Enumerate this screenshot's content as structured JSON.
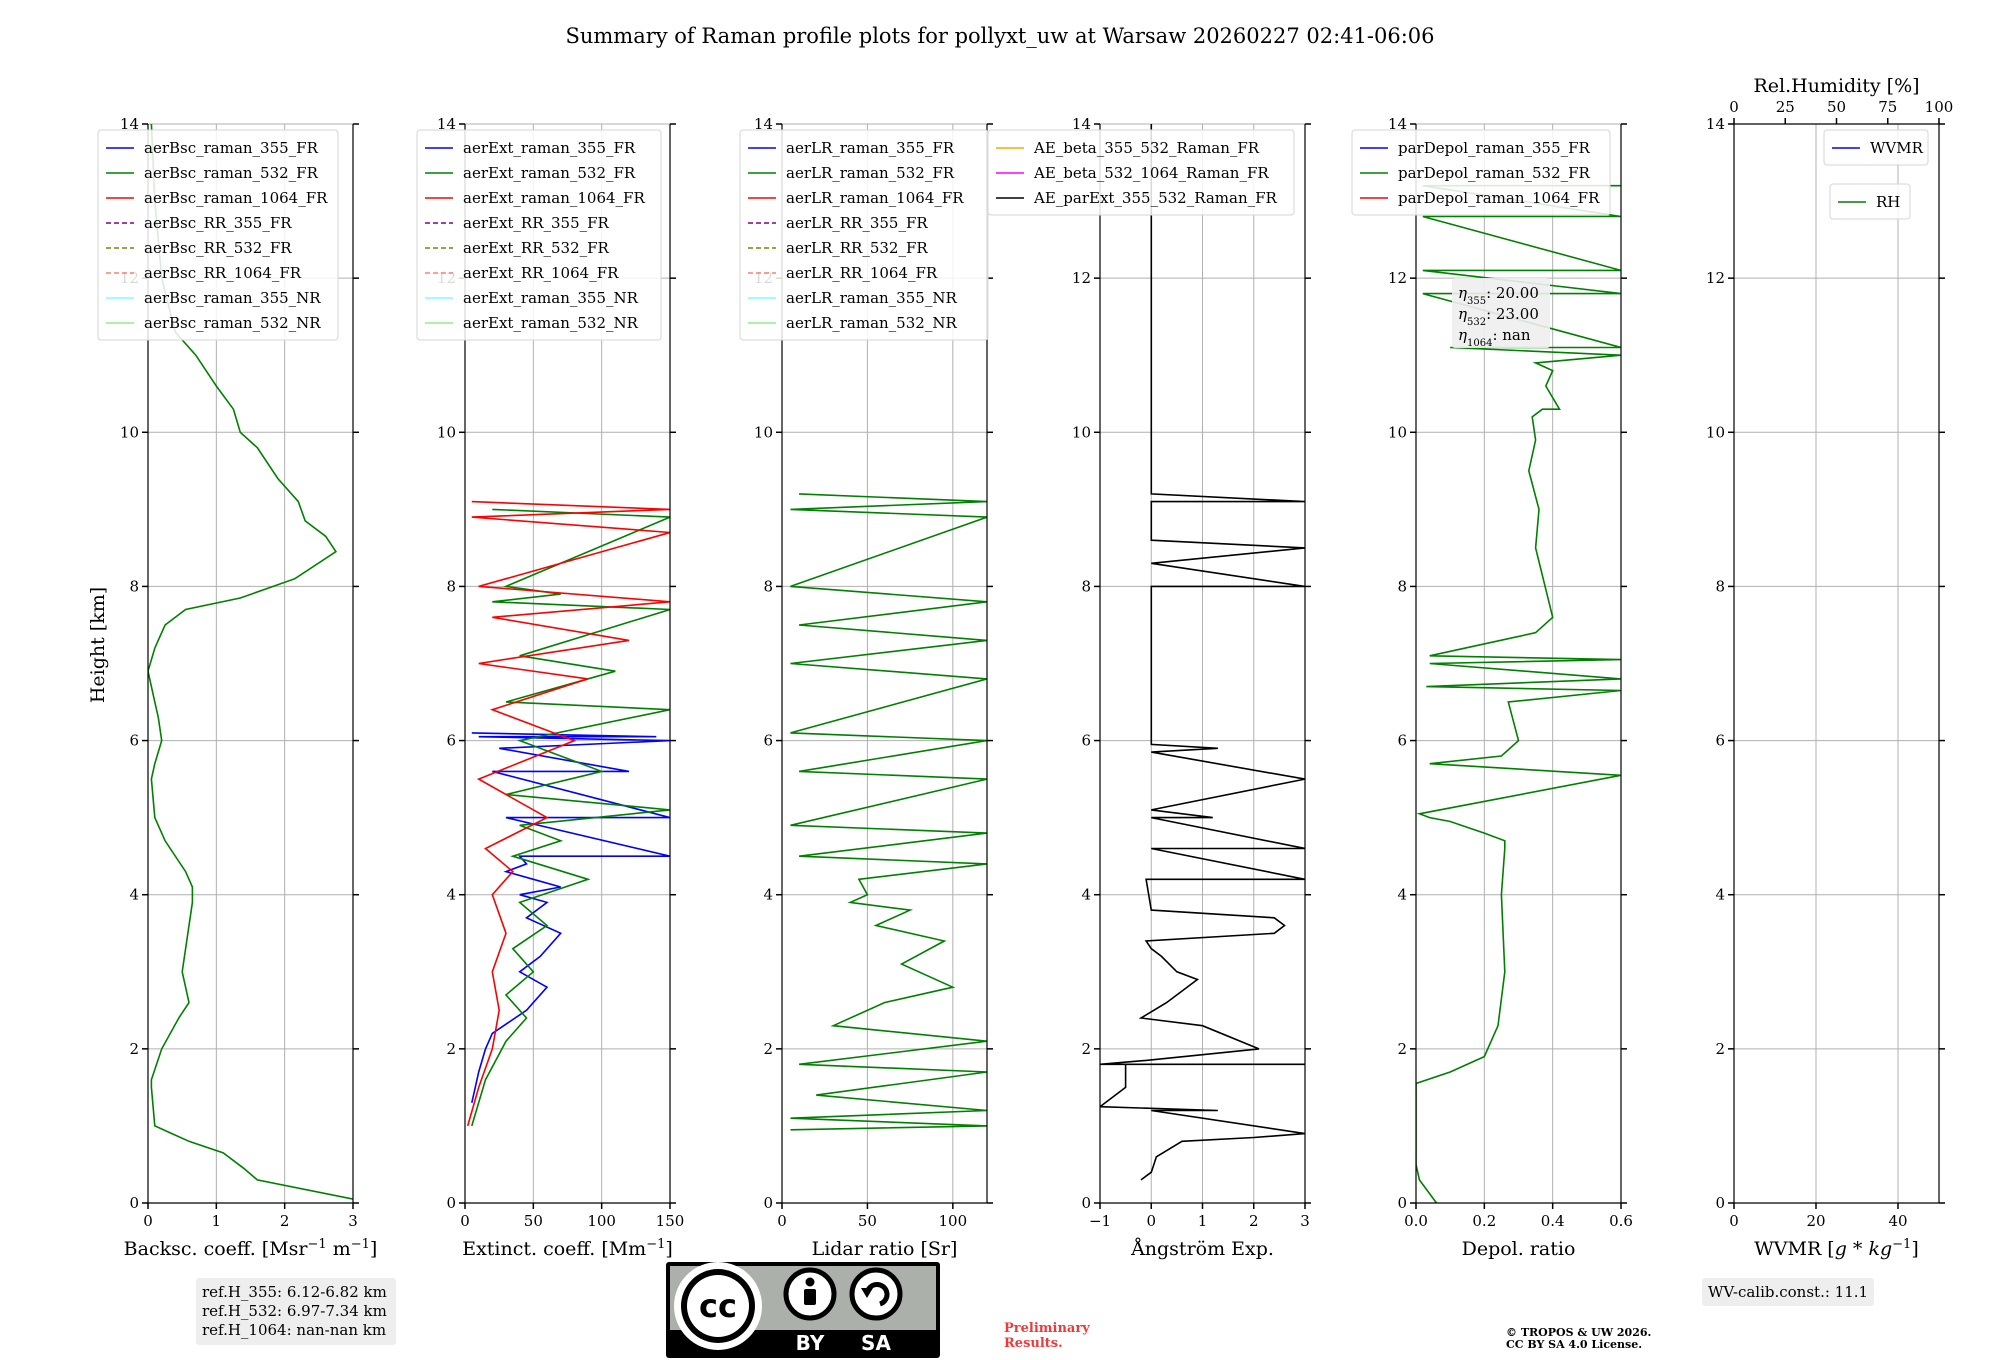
{
  "title": "Summary of Raman profile plots for pollyxt_uw at Warsaw 20260227 02:41-06:06",
  "ylabel": "Height [km]",
  "colors": {
    "blue": "#0000ff",
    "green": "#008000",
    "red": "#ff0000",
    "purple": "#800080",
    "olive": "#808000",
    "salmon": "#fa8072",
    "cyan": "#7fffff",
    "lightgreen": "#90ee90",
    "orange": "#ffa500",
    "magenta": "#ff00ff",
    "black": "#000000"
  },
  "chart_data": [
    {
      "type": "line",
      "id": "bsc",
      "xlabel_pre": "Backsc. coeff. [Msr",
      "xlabel_sup1": "−1",
      "xlabel_mid": " m",
      "xlabel_sup2": "−1",
      "xlabel_post": "]",
      "xlim": [
        0,
        3
      ],
      "xticks": [
        0,
        1,
        2,
        3
      ],
      "ylim": [
        0,
        14
      ],
      "yticks": [
        0,
        2,
        4,
        6,
        8,
        10,
        12,
        14
      ],
      "legend": [
        {
          "label": "aerBsc_raman_355_FR",
          "color": "blue",
          "dash": false
        },
        {
          "label": "aerBsc_raman_532_FR",
          "color": "green",
          "dash": false
        },
        {
          "label": "aerBsc_raman_1064_FR",
          "color": "red",
          "dash": false
        },
        {
          "label": "aerBsc_RR_355_FR",
          "color": "purple",
          "dash": true
        },
        {
          "label": "aerBsc_RR_532_FR",
          "color": "olive",
          "dash": true
        },
        {
          "label": "aerBsc_RR_1064_FR",
          "color": "salmon",
          "dash": true
        },
        {
          "label": "aerBsc_raman_355_NR",
          "color": "cyan",
          "dash": false
        },
        {
          "label": "aerBsc_raman_532_NR",
          "color": "lightgreen",
          "dash": false
        }
      ],
      "series": [
        {
          "name": "aerBsc_raman_532_FR",
          "color": "green",
          "x": [
            3.0,
            1.6,
            1.4,
            1.1,
            0.6,
            0.35,
            0.1,
            0.05,
            0.05,
            0.2,
            0.45,
            0.6,
            0.5,
            0.6,
            0.65,
            0.65,
            0.55,
            0.25,
            0.1,
            0.05,
            0.1,
            0.2,
            0.15,
            0.1,
            0.05,
            0.0,
            0.1,
            0.25,
            0.55,
            1.35,
            2.15,
            2.75,
            2.6,
            2.3,
            2.2,
            1.9,
            1.6,
            1.35,
            1.25,
            1.0,
            0.7,
            0.4,
            0.2,
            0.1,
            0.05
          ],
          "y": [
            0.05,
            0.3,
            0.45,
            0.65,
            0.8,
            0.9,
            1.0,
            1.5,
            1.6,
            2.0,
            2.4,
            2.6,
            3.0,
            3.6,
            3.9,
            4.1,
            4.3,
            4.7,
            5.0,
            5.5,
            5.7,
            6.0,
            6.3,
            6.5,
            6.7,
            6.9,
            7.2,
            7.5,
            7.7,
            7.85,
            8.1,
            8.45,
            8.65,
            8.85,
            9.1,
            9.4,
            9.8,
            10.0,
            10.3,
            10.6,
            11.0,
            11.3,
            12.0,
            13.0,
            14.0
          ]
        }
      ]
    },
    {
      "type": "line",
      "id": "ext",
      "xlabel_pre": "Extinct. coeff. [Mm",
      "xlabel_sup1": "−1",
      "xlabel_post": "]",
      "xlim": [
        0,
        150
      ],
      "xticks": [
        0,
        50,
        100,
        150
      ],
      "ylim": [
        0,
        14
      ],
      "yticks": [
        0,
        2,
        4,
        6,
        8,
        10,
        12,
        14
      ],
      "legend": [
        {
          "label": "aerExt_raman_355_FR",
          "color": "blue",
          "dash": false
        },
        {
          "label": "aerExt_raman_532_FR",
          "color": "green",
          "dash": false
        },
        {
          "label": "aerExt_raman_1064_FR",
          "color": "red",
          "dash": false
        },
        {
          "label": "aerExt_RR_355_FR",
          "color": "purple",
          "dash": true
        },
        {
          "label": "aerExt_RR_532_FR",
          "color": "olive",
          "dash": true
        },
        {
          "label": "aerExt_RR_1064_FR",
          "color": "salmon",
          "dash": true
        },
        {
          "label": "aerExt_raman_355_NR",
          "color": "cyan",
          "dash": false
        },
        {
          "label": "aerExt_raman_532_NR",
          "color": "lightgreen",
          "dash": false
        }
      ],
      "series": [
        {
          "name": "aerExt_raman_355_FR",
          "color": "blue",
          "x": [
            5,
            10,
            15,
            20,
            45,
            60,
            40,
            55,
            70,
            45,
            60,
            40,
            70,
            50,
            30,
            45,
            40,
            150,
            30,
            150,
            20,
            120,
            25,
            150,
            10,
            140,
            5
          ],
          "y": [
            1.3,
            1.7,
            2.0,
            2.2,
            2.5,
            2.8,
            3.0,
            3.2,
            3.5,
            3.7,
            3.9,
            4.0,
            4.1,
            4.2,
            4.3,
            4.4,
            4.5,
            4.5,
            5.0,
            5.0,
            5.6,
            5.6,
            5.9,
            6.0,
            6.05,
            6.05,
            6.1
          ]
        },
        {
          "name": "aerExt_raman_532_FR",
          "color": "green",
          "x": [
            5,
            15,
            30,
            45,
            30,
            50,
            35,
            60,
            40,
            90,
            35,
            70,
            40,
            150,
            30,
            100,
            40,
            150,
            30,
            110,
            40,
            150,
            20,
            70,
            30,
            150,
            20
          ],
          "y": [
            1.0,
            1.6,
            2.1,
            2.4,
            2.7,
            3.0,
            3.3,
            3.6,
            3.9,
            4.2,
            4.5,
            4.7,
            4.9,
            5.1,
            5.3,
            5.6,
            6.0,
            6.4,
            6.5,
            6.9,
            7.1,
            7.7,
            7.8,
            7.9,
            8.0,
            8.9,
            9.0
          ]
        },
        {
          "name": "aerExt_raman_1064_FR",
          "color": "red",
          "x": [
            2,
            10,
            20,
            25,
            20,
            30,
            20,
            35,
            15,
            60,
            10,
            80,
            20,
            90,
            10,
            120,
            20,
            150,
            10,
            150,
            5,
            150,
            5
          ],
          "y": [
            1.0,
            1.5,
            2.0,
            2.5,
            3.0,
            3.5,
            4.0,
            4.3,
            4.6,
            5.0,
            5.5,
            6.0,
            6.4,
            6.8,
            7.0,
            7.3,
            7.6,
            7.8,
            8.0,
            8.7,
            8.9,
            9.0,
            9.1
          ]
        }
      ]
    },
    {
      "type": "line",
      "id": "lr",
      "xlabel_pre": "Lidar ratio [Sr]",
      "xlim": [
        0,
        120
      ],
      "xticks": [
        0,
        50,
        100
      ],
      "ylim": [
        0,
        14
      ],
      "yticks": [
        0,
        2,
        4,
        6,
        8,
        10,
        12,
        14
      ],
      "legend": [
        {
          "label": "aerLR_raman_355_FR",
          "color": "blue",
          "dash": false
        },
        {
          "label": "aerLR_raman_532_FR",
          "color": "green",
          "dash": false
        },
        {
          "label": "aerLR_raman_1064_FR",
          "color": "red",
          "dash": false
        },
        {
          "label": "aerLR_RR_355_FR",
          "color": "purple",
          "dash": true
        },
        {
          "label": "aerLR_RR_532_FR",
          "color": "olive",
          "dash": true
        },
        {
          "label": "aerLR_RR_1064_FR",
          "color": "salmon",
          "dash": true
        },
        {
          "label": "aerLR_raman_355_NR",
          "color": "cyan",
          "dash": false
        },
        {
          "label": "aerLR_raman_532_NR",
          "color": "lightgreen",
          "dash": false
        }
      ],
      "series": [
        {
          "name": "aerLR_raman_532_FR",
          "color": "green",
          "x": [
            5,
            120,
            5,
            120,
            20,
            120,
            10,
            120,
            30,
            60,
            100,
            70,
            95,
            55,
            75,
            40,
            50,
            45,
            120,
            10,
            120,
            5,
            120,
            10,
            120,
            5,
            120,
            5,
            120,
            10,
            120,
            5,
            120,
            5,
            120,
            10
          ],
          "y": [
            0.95,
            1.0,
            1.1,
            1.2,
            1.4,
            1.7,
            1.8,
            2.1,
            2.3,
            2.6,
            2.8,
            3.1,
            3.4,
            3.6,
            3.8,
            3.9,
            4.0,
            4.2,
            4.4,
            4.5,
            4.8,
            4.9,
            5.5,
            5.6,
            6.0,
            6.1,
            6.8,
            7.0,
            7.3,
            7.5,
            7.8,
            8.0,
            8.9,
            9.0,
            9.1,
            9.2
          ]
        }
      ]
    },
    {
      "type": "line",
      "id": "ae",
      "xlabel_pre": "Ångström Exp.",
      "xlim": [
        -1,
        3
      ],
      "xticks": [
        -1,
        0,
        1,
        2,
        3
      ],
      "ylim": [
        0,
        14
      ],
      "yticks": [
        0,
        2,
        4,
        6,
        8,
        10,
        12,
        14
      ],
      "legend": [
        {
          "label": "AE_beta_355_532_Raman_FR",
          "color": "orange",
          "dash": false
        },
        {
          "label": "AE_beta_532_1064_Raman_FR",
          "color": "magenta",
          "dash": false
        },
        {
          "label": "AE_parExt_355_532_Raman_FR",
          "color": "black",
          "dash": false
        }
      ],
      "series": [
        {
          "name": "AE_parExt_355_532_Raman_FR",
          "color": "black",
          "x": [
            -0.2,
            0.0,
            0.1,
            0.6,
            2.0,
            3.0,
            0.0,
            1.3,
            -1.0,
            -0.5,
            -0.5,
            3.0,
            -1.0,
            -0.1,
            2.1,
            1.0,
            -0.2,
            0.3,
            0.9,
            0.5,
            0.2,
            0.0,
            -0.1,
            2.4,
            2.6,
            2.4,
            0.0,
            -0.1,
            3.0,
            0.0,
            3.0,
            0.0,
            1.2,
            0.0,
            3.0,
            0.0,
            1.3,
            0.0,
            0.0,
            3.0,
            0.0,
            3.0,
            0.0,
            0.0,
            3.0,
            0.0,
            0.0
          ],
          "y": [
            0.3,
            0.4,
            0.6,
            0.8,
            0.85,
            0.9,
            1.2,
            1.2,
            1.25,
            1.5,
            1.8,
            1.8,
            1.8,
            1.85,
            2.0,
            2.3,
            2.4,
            2.6,
            2.9,
            3.0,
            3.2,
            3.3,
            3.4,
            3.5,
            3.6,
            3.7,
            3.8,
            4.2,
            4.2,
            4.6,
            4.6,
            5.0,
            5.0,
            5.1,
            5.5,
            5.85,
            5.9,
            5.95,
            8.0,
            8.0,
            8.3,
            8.5,
            8.6,
            9.1,
            9.1,
            9.2,
            14.0
          ]
        }
      ]
    },
    {
      "type": "line",
      "id": "depol",
      "xlabel_pre": "Depol. ratio",
      "xlim": [
        0,
        0.6
      ],
      "xticks": [
        0.0,
        0.2,
        0.4,
        0.6
      ],
      "xtick_labels": [
        "0.0",
        "0.2",
        "0.4",
        "0.6"
      ],
      "ylim": [
        0,
        14
      ],
      "yticks": [
        0,
        2,
        4,
        6,
        8,
        10,
        12,
        14
      ],
      "legend": [
        {
          "label": "parDepol_raman_355_FR",
          "color": "blue",
          "dash": false
        },
        {
          "label": "parDepol_raman_532_FR",
          "color": "green",
          "dash": false
        },
        {
          "label": "parDepol_raman_1064_FR",
          "color": "red",
          "dash": false
        }
      ],
      "annotation_lines": [
        {
          "name": "η",
          "sub": "355",
          "value": ": 20.00"
        },
        {
          "name": "η",
          "sub": "532",
          "value": ": 23.00"
        },
        {
          "name": "η",
          "sub": "1064",
          "value": ": nan"
        }
      ],
      "series": [
        {
          "name": "parDepol_raman_532_FR",
          "color": "green",
          "x": [
            0.06,
            0.01,
            0.0,
            0.0,
            0.1,
            0.2,
            0.24,
            0.26,
            0.25,
            0.26,
            0.26,
            0.2,
            0.1,
            0.04,
            0.01,
            0.6,
            0.04,
            0.25,
            0.3,
            0.27,
            0.6,
            0.03,
            0.6,
            0.04,
            0.6,
            0.04,
            0.35,
            0.4,
            0.35,
            0.36,
            0.33,
            0.35,
            0.34,
            0.37,
            0.42,
            0.38,
            0.4,
            0.35,
            0.6,
            0.1,
            0.6,
            0.02,
            0.6,
            0.02,
            0.6,
            0.02,
            0.6,
            0.02,
            0.6
          ],
          "y": [
            0.0,
            0.3,
            0.5,
            1.55,
            1.7,
            1.9,
            2.3,
            3.0,
            4.0,
            4.6,
            4.7,
            4.8,
            4.95,
            5.0,
            5.05,
            5.55,
            5.7,
            5.8,
            6.0,
            6.5,
            6.65,
            6.7,
            6.8,
            7.0,
            7.05,
            7.1,
            7.4,
            7.6,
            8.5,
            9.0,
            9.5,
            9.9,
            10.2,
            10.3,
            10.3,
            10.6,
            10.8,
            10.9,
            11.0,
            11.1,
            11.1,
            11.8,
            11.8,
            12.1,
            12.1,
            12.8,
            12.8,
            13.2,
            13.2
          ]
        }
      ]
    },
    {
      "type": "line",
      "id": "wv",
      "xlabel_pre": "WVMR [",
      "xlabel_italic": "g * kg",
      "xlabel_sup1": "−1",
      "xlabel_post": "]",
      "xlim": [
        0,
        50
      ],
      "xticks": [
        0,
        20,
        40
      ],
      "ylim": [
        0,
        14
      ],
      "yticks": [
        0,
        2,
        4,
        6,
        8,
        10,
        12,
        14
      ],
      "top_label": "Rel.Humidity [%]",
      "top_xlim": [
        0,
        100
      ],
      "top_xticks": [
        0,
        25,
        50,
        75,
        100
      ],
      "legend": [
        {
          "label": "WVMR",
          "color": "blue",
          "dash": false
        }
      ],
      "legend2": [
        {
          "label": "RH",
          "color": "green",
          "dash": false
        }
      ],
      "series": []
    }
  ],
  "footer": {
    "refH": [
      "ref.H_355: 6.12-6.82 km",
      "ref.H_532: 6.97-7.34 km",
      "ref.H_1064: nan-nan km"
    ],
    "cc_by": "BY",
    "cc_sa": "SA",
    "cc_logo": "cc",
    "preliminary": [
      "Preliminary",
      "Results."
    ],
    "copyright": [
      "© TROPOS & UW 2026.",
      "CC BY SA 4.0 License."
    ],
    "wv_calib": "WV-calib.const.: 11.1"
  }
}
